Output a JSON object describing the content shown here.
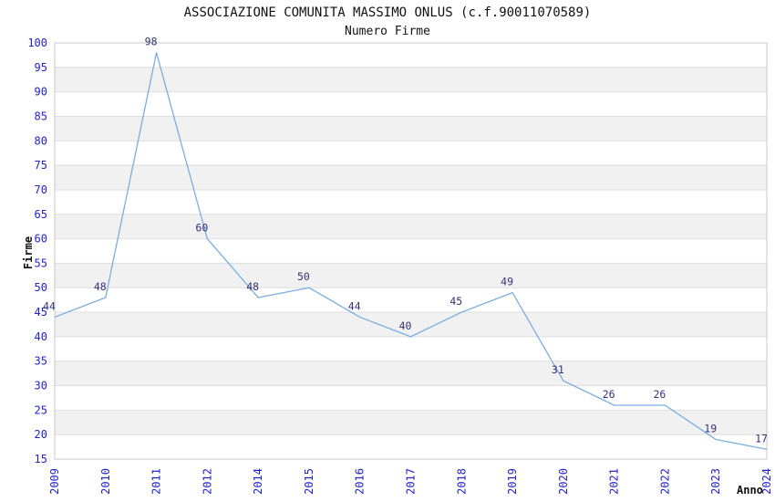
{
  "page": {
    "title": "ASSOCIAZIONE COMUNITA MASSIMO ONLUS (c.f.90011070589)",
    "subtitle": "Numero Firme"
  },
  "chart_data": {
    "type": "line",
    "title": "ASSOCIAZIONE COMUNITA MASSIMO ONLUS (c.f.90011070589)",
    "subtitle": "Numero Firme",
    "xlabel": "Anno",
    "ylabel": "Firme",
    "categories": [
      "2009",
      "2010",
      "2011",
      "2012",
      "2014",
      "2015",
      "2016",
      "2017",
      "2018",
      "2019",
      "2020",
      "2021",
      "2022",
      "2023",
      "2024"
    ],
    "values": [
      44,
      48,
      98,
      60,
      48,
      50,
      44,
      40,
      45,
      49,
      31,
      26,
      26,
      19,
      17
    ],
    "ylim": [
      15,
      100
    ],
    "ytick_step": 5,
    "grid": true,
    "legend": false,
    "band_fill": "alternating",
    "colors": {
      "line": "#7aade0",
      "tick_label": "#2222cc",
      "data_label": "#333377",
      "band": "#f1f1f1",
      "gridline": "#dedede",
      "plot_border": "#c8c8c8",
      "text": "#111111",
      "background": "#ffffff"
    }
  }
}
